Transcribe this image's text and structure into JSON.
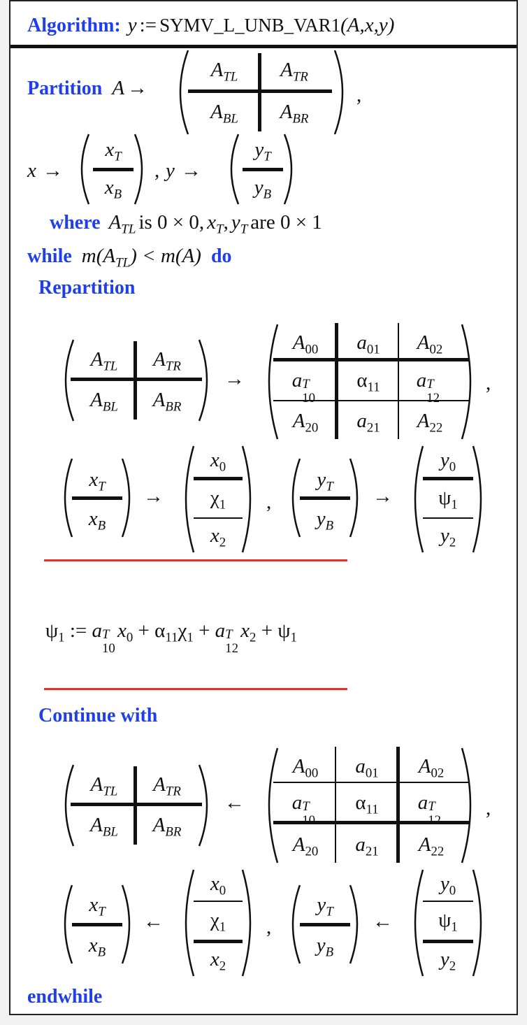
{
  "algorithm": {
    "label": "Algorithm:",
    "lhs": "y",
    "assign": ":=",
    "name": "SYMV_L_UNB_VAR1",
    "args": "(A,x,y)"
  },
  "partition": {
    "keyword": "Partition",
    "A": "A",
    "arrow": "→",
    "comma": ",",
    "ATL": "A",
    "ATL_sub": "TL",
    "ATR": "A",
    "ATR_sub": "TR",
    "ABL": "A",
    "ABL_sub": "BL",
    "ABR": "A",
    "ABR_sub": "BR",
    "x": "x",
    "xT_sub": "T",
    "xB_sub": "B",
    "y": "y",
    "yT_sub": "T",
    "yB_sub": "B",
    "where_keyword": "where",
    "where_text": "is 0 × 0,",
    "where_text2": "are 0 × 1"
  },
  "loop": {
    "while_keyword": "while",
    "condition": "m(A",
    "condition_mid": ") < m(A)",
    "do_keyword": "do",
    "repartition_keyword": "Repartition",
    "continue_keyword": "Continue with",
    "endwhile_keyword": "endwhile"
  },
  "update": {
    "psi": "ψ",
    "assign": ":=",
    "expr": "a"
  },
  "symbols": {
    "A00": "A",
    "a01": "a",
    "A02": "A",
    "a10T": "a",
    "alpha11": "α",
    "a12T": "a",
    "A20": "A",
    "a21": "a",
    "A22": "A",
    "x0": "x",
    "chi1": "χ",
    "x2": "x",
    "y0": "y",
    "psi1": "ψ",
    "y2": "y",
    "left_arrow": "←",
    "right_arrow": "→"
  },
  "colors": {
    "keyword": "#1f3fe8",
    "divider_red": "#e8312a",
    "frame": "#222222"
  }
}
